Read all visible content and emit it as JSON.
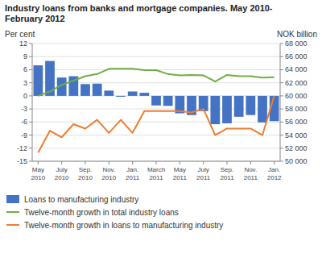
{
  "chart_data": {
    "type": "bar",
    "title": "Industry loans from banks and mortgage companies. May 2010-\nFebruary 2012",
    "ylabel": "Per cent",
    "y2label": "NOK billion",
    "categories": [
      "May\n2010",
      null,
      "July\n2010",
      null,
      "Sep.\n2010",
      null,
      "Nov.\n2010",
      null,
      "Jan.\n2011",
      null,
      "March\n2011",
      null,
      "May\n2011",
      null,
      "July\n2011",
      null,
      "Sep.\n2011",
      null,
      "Nov.\n2011",
      null,
      "Jan.\n2012"
    ],
    "series": [
      {
        "name": "Loans to manufacturing industry",
        "type": "bar",
        "color": "#4472C4",
        "values": [
          7.0,
          8.0,
          4.2,
          4.5,
          2.7,
          2.8,
          1.2,
          -0.2,
          1.0,
          0.7,
          -2.2,
          -2.3,
          -4.0,
          -4.4,
          -3.5,
          -6.5,
          -6.3,
          -4.8,
          -4.4,
          -6.1,
          -5.8
        ]
      },
      {
        "name": "Twelve-month growth in total industry loans",
        "type": "line",
        "color": "#70AD47",
        "values": [
          0.0,
          1.0,
          2.5,
          3.5,
          4.5,
          5.0,
          6.2,
          6.2,
          6.2,
          5.9,
          5.9,
          5.0,
          4.7,
          4.8,
          4.7,
          3.3,
          4.8,
          4.5,
          4.5,
          4.2,
          4.3
        ]
      },
      {
        "name": "Twelve-month growth in loans to manufacturing industry",
        "type": "line",
        "color": "#ED7D31",
        "values": [
          -13.0,
          -8.0,
          -9.5,
          -6.5,
          -7.5,
          -5.5,
          -8.5,
          -5.5,
          -8.5,
          -3.5,
          -3.5,
          -3.5,
          -3.5,
          -3.8,
          -3.0,
          -9.0,
          -7.5,
          -7.5,
          -7.5,
          -9.0,
          0.0
        ]
      }
    ],
    "ylim": [
      -15,
      12
    ],
    "yticks": [
      -15,
      -12,
      -9,
      -6,
      -3,
      0,
      3,
      6,
      9,
      12
    ],
    "y2lim": [
      50000,
      68000
    ],
    "y2ticks": [
      {
        "value": 50000,
        "label": "50 000"
      },
      {
        "value": 52000,
        "label": "52 000"
      },
      {
        "value": 54000,
        "label": "54 000"
      },
      {
        "value": 56000,
        "label": "56 000"
      },
      {
        "value": 58000,
        "label": "58 000"
      },
      {
        "value": 60000,
        "label": "60 000"
      },
      {
        "value": 62000,
        "label": "62 000"
      },
      {
        "value": 64000,
        "label": "64 000"
      },
      {
        "value": 66000,
        "label": "66 000"
      },
      {
        "value": 68000,
        "label": "68 000"
      }
    ],
    "grid": true,
    "legend": "bottom"
  }
}
